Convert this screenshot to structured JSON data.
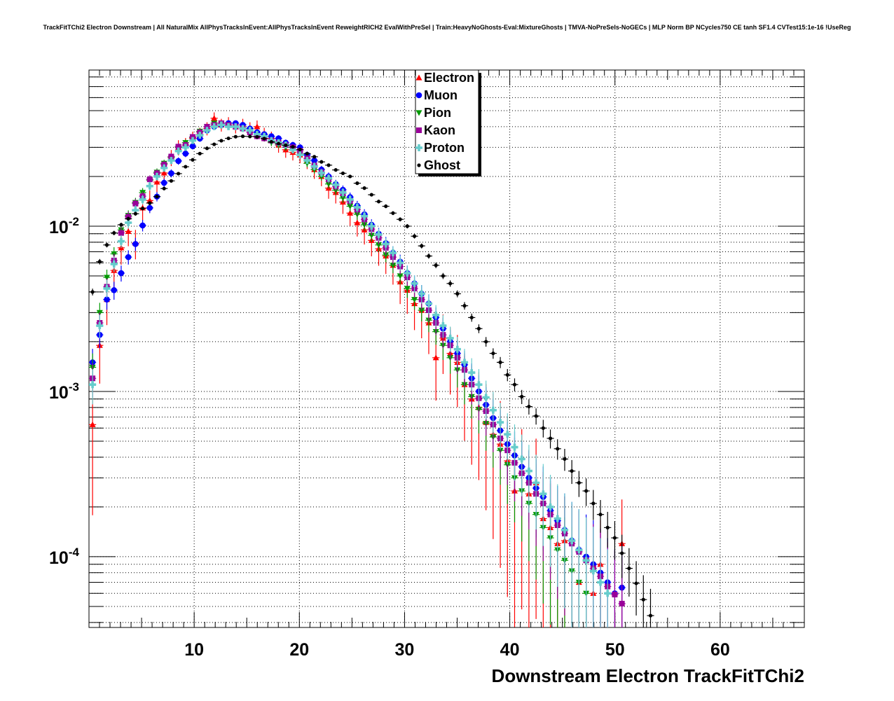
{
  "chart_data": {
    "type": "scatter",
    "title": "TrackFitTChi2 Electron Downstream | All NaturalMix AllPhysTracksInEvent:AllPhysTracksInEvent ReweightRICH2 EvalWithPreSel | Train:HeavyNoGhosts-Eval:MixtureGhosts | TMVA-NoPreSels-NoGECs | MLP Norm BP NCycles750 CE tanh SF1.4 CVTest15:1e-16 !UseReg",
    "xlabel": "Downstream Electron TrackFitTChi2",
    "ylabel": "",
    "xlim": [
      0,
      68
    ],
    "ylim": [
      3.73e-05,
      0.0881
    ],
    "yscale": "log",
    "grid": true,
    "legend_position": "top-center",
    "bin_width": 0.68,
    "x_start": 0.34,
    "xticks": [
      "10",
      "20",
      "30",
      "40",
      "50",
      "60"
    ],
    "xtick_values": [
      10,
      20,
      30,
      40,
      50,
      60
    ],
    "yticks": [
      {
        "value": 0.01,
        "base": "10",
        "exp": "-2"
      },
      {
        "value": 0.001,
        "base": "10",
        "exp": "-3"
      },
      {
        "value": 0.0001,
        "base": "10",
        "exp": "-4"
      }
    ],
    "series": [
      {
        "name": "Electron",
        "color": "#ff0000",
        "marker": "triangle-up",
        "values": [
          0.00063,
          0.0019,
          0.0036,
          0.0054,
          0.0074,
          0.0093,
          0.0079,
          0.0129,
          0.0143,
          0.0185,
          0.021,
          0.026,
          0.03,
          0.031,
          0.034,
          0.036,
          0.039,
          0.045,
          0.041,
          0.042,
          0.04,
          0.041,
          0.039,
          0.04,
          0.036,
          0.034,
          0.031,
          0.029,
          0.028,
          0.027,
          0.025,
          0.022,
          0.02,
          0.017,
          0.016,
          0.014,
          0.012,
          0.0105,
          0.0095,
          0.0082,
          0.0073,
          0.0066,
          0.0058,
          0.0046,
          0.0041,
          0.0034,
          0.0031,
          0.0026,
          0.0016,
          0.0021,
          0.0017,
          0.0015,
          0.0011,
          0.0009,
          0.0008,
          0.00065,
          0.00055,
          0.00048,
          0.00038,
          0.00025,
          0.00032,
          0.00024,
          0.00028,
          0.00017,
          0.00015,
          0.00012,
          0.000125,
          null,
          7e-05,
          null,
          6e-05,
          9e-05,
          null,
          null,
          0.00012
        ]
      },
      {
        "name": "Muon",
        "color": "#0000ff",
        "marker": "circle",
        "values": [
          0.0015,
          0.0022,
          0.0036,
          0.0041,
          0.0052,
          0.0065,
          0.0078,
          0.0101,
          0.0129,
          0.0151,
          0.0183,
          0.0209,
          0.0248,
          0.0275,
          0.0305,
          0.0339,
          0.038,
          0.04,
          0.041,
          0.042,
          0.042,
          0.041,
          0.039,
          0.037,
          0.036,
          0.035,
          0.034,
          0.032,
          0.031,
          0.03,
          0.027,
          0.025,
          0.022,
          0.02,
          0.018,
          0.0166,
          0.015,
          0.0133,
          0.0118,
          0.0102,
          0.009,
          0.0079,
          0.0069,
          0.0061,
          0.0052,
          0.0045,
          0.0039,
          0.0034,
          0.0028,
          0.0024,
          0.002,
          0.0017,
          0.00145,
          0.0012,
          0.001,
          0.00083,
          0.00069,
          0.00058,
          0.00048,
          0.00041,
          0.00035,
          0.0003,
          0.00026,
          0.00023,
          0.00019,
          0.000165,
          0.000145,
          0.000125,
          0.00011,
          0.0001,
          9e-05,
          8e-05,
          7e-05,
          6e-05,
          6.5e-05
        ]
      },
      {
        "name": "Pion",
        "color": "#009900",
        "marker": "triangle-down",
        "values": [
          0.0014,
          0.003,
          0.0049,
          0.0068,
          0.0095,
          0.0116,
          0.0139,
          0.016,
          0.019,
          0.0212,
          0.024,
          0.026,
          0.03,
          0.032,
          0.0345,
          0.0375,
          0.04,
          0.042,
          0.042,
          0.041,
          0.04,
          0.039,
          0.037,
          0.035,
          0.034,
          0.032,
          0.031,
          0.03,
          0.029,
          0.027,
          0.024,
          0.022,
          0.02,
          0.018,
          0.0165,
          0.0148,
          0.0132,
          0.0118,
          0.0102,
          0.0088,
          0.0077,
          0.0067,
          0.0058,
          0.005,
          0.0042,
          0.0036,
          0.0031,
          0.0027,
          0.0023,
          0.0019,
          0.0016,
          0.00135,
          0.0011,
          0.00093,
          0.00078,
          0.00064,
          0.00053,
          0.00044,
          0.00036,
          0.0003,
          0.00025,
          0.00021,
          0.00018,
          0.00015,
          0.00013,
          0.00011,
          9.5e-05,
          8.2e-05,
          7e-05,
          6e-05
        ]
      },
      {
        "name": "Kaon",
        "color": "#990099",
        "marker": "square",
        "values": [
          0.0012,
          0.0026,
          0.0043,
          0.0062,
          0.0091,
          0.0114,
          0.0137,
          0.0152,
          0.0192,
          0.0209,
          0.0236,
          0.0264,
          0.0303,
          0.031,
          0.0347,
          0.037,
          0.04,
          0.041,
          0.042,
          0.041,
          0.04,
          0.039,
          0.037,
          0.035,
          0.034,
          0.033,
          0.032,
          0.031,
          0.03,
          0.0286,
          0.0257,
          0.0233,
          0.0212,
          0.0192,
          0.0174,
          0.0158,
          0.0142,
          0.0126,
          0.011,
          0.0096,
          0.0085,
          0.0074,
          0.0065,
          0.0057,
          0.0049,
          0.0042,
          0.0036,
          0.0031,
          0.0026,
          0.0022,
          0.0019,
          0.0016,
          0.00135,
          0.0011,
          0.00091,
          0.00076,
          0.00063,
          0.00052,
          0.00044,
          0.00037,
          0.00032,
          0.00028,
          0.00024,
          0.00021,
          0.00018,
          0.000155,
          0.000138,
          0.00012,
          0.000107,
          9.5e-05,
          8.5e-05,
          7.6e-05,
          6.6e-05,
          5.9e-05,
          5.2e-05
        ]
      },
      {
        "name": "Proton",
        "color": "#66cccc",
        "marker": "cross",
        "values": [
          0.0011,
          0.0025,
          0.0042,
          0.0059,
          0.0081,
          0.0105,
          0.0125,
          0.0145,
          0.0175,
          0.02,
          0.0225,
          0.025,
          0.0285,
          0.03,
          0.033,
          0.0355,
          0.038,
          0.04,
          0.041,
          0.04,
          0.04,
          0.039,
          0.038,
          0.036,
          0.035,
          0.033,
          0.032,
          0.031,
          0.029,
          0.027,
          0.025,
          0.023,
          0.021,
          0.0195,
          0.0178,
          0.016,
          0.0145,
          0.013,
          0.0115,
          0.01,
          0.0089,
          0.0078,
          0.0069,
          0.006,
          0.0052,
          0.0045,
          0.0039,
          0.0034,
          0.0029,
          0.0025,
          0.0021,
          0.0018,
          0.0015,
          0.0013,
          0.0011,
          0.00092,
          0.00077,
          0.00065,
          0.00055,
          0.00046,
          0.00039,
          0.00033,
          0.00028,
          0.00024,
          0.0002,
          0.00017,
          0.000145,
          0.000125,
          0.00011,
          9.5e-05,
          8.2e-05,
          7e-05,
          6e-05
        ]
      },
      {
        "name": "Ghost",
        "color": "#000000",
        "marker": "dot",
        "values": [
          0.004,
          0.0061,
          0.0077,
          0.0091,
          0.0102,
          0.0111,
          0.0119,
          0.0128,
          0.0138,
          0.0151,
          0.0169,
          0.0188,
          0.0208,
          0.0229,
          0.0252,
          0.0275,
          0.0296,
          0.0313,
          0.0329,
          0.034,
          0.0348,
          0.035,
          0.0349,
          0.0347,
          0.0339,
          0.0324,
          0.0316,
          0.0309,
          0.0302,
          0.0291,
          0.0275,
          0.0263,
          0.0245,
          0.0234,
          0.0219,
          0.0209,
          0.02,
          0.0182,
          0.017,
          0.0155,
          0.0141,
          0.0132,
          0.012,
          0.011,
          0.01,
          0.0087,
          0.0076,
          0.0066,
          0.0058,
          0.005,
          0.0045,
          0.0039,
          0.0033,
          0.0028,
          0.0024,
          0.002,
          0.0017,
          0.0015,
          0.00126,
          0.0011,
          0.00093,
          0.00081,
          0.00071,
          0.0006,
          0.00052,
          0.00045,
          0.00039,
          0.00033,
          0.00028,
          0.00025,
          0.00021,
          0.00018,
          0.00015,
          0.00013,
          0.000105,
          8.5e-05,
          6.9e-05,
          5.5e-05,
          4.4e-05
        ]
      }
    ]
  }
}
